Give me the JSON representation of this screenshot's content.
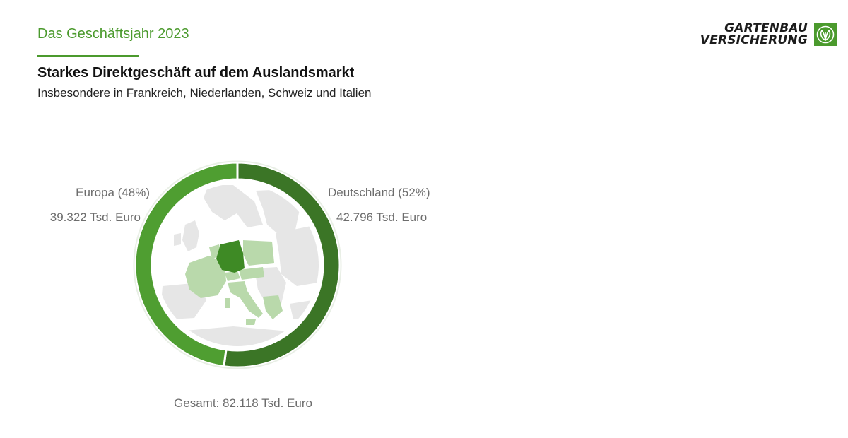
{
  "header": {
    "kicker": "Das Geschäftsjahr 2023",
    "title": "Starkes Direktgeschäft auf dem Auslandsmarkt",
    "subtitle": "Insbesondere in Frankreich, Niederlanden, Schweiz und Italien"
  },
  "logo": {
    "line1": "GARTENBAU",
    "line2": "VERSICHERUNG",
    "icon": "leaf-emblem-icon"
  },
  "chart_data": {
    "type": "pie",
    "variant": "donut",
    "series": [
      {
        "name": "Deutschland",
        "percent_label": "Deutschland (52%)",
        "value": 42796,
        "value_label": "42.796 Tsd. Euro",
        "percent": 52,
        "color": "#3b7526"
      },
      {
        "name": "Europa",
        "percent_label": "Europa (48%)",
        "value": 39322,
        "value_label": "39.322 Tsd. Euro",
        "percent": 48,
        "color": "#4f9e31"
      }
    ],
    "total": 82118,
    "total_label": "Gesamt: 82.118 Tsd. Euro",
    "center_image": "europe-map-icon"
  },
  "colors": {
    "accent": "#4b9a2d",
    "map_land": "#e6e6e6",
    "map_highlight": "#b9d9ab",
    "map_germany": "#3e8a25"
  }
}
